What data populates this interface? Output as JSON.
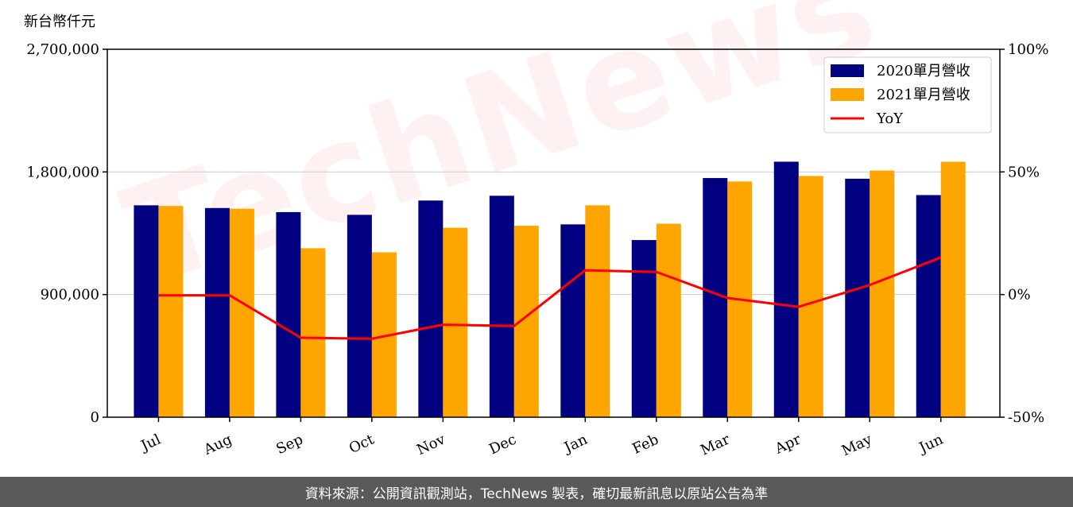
{
  "watermark": "TechNews",
  "footer": {
    "text": "資料來源：公開資訊觀測站，TechNews 製表，確切最新訊息以原站公告為準"
  },
  "chart_data": {
    "type": "bar",
    "unit_label": "新台幣仟元",
    "categories": [
      "Jul",
      "Aug",
      "Sep",
      "Oct",
      "Nov",
      "Dec",
      "Jan",
      "Feb",
      "Mar",
      "Apr",
      "May",
      "Jun"
    ],
    "series": [
      {
        "name": "2020單月營收",
        "color": "#000080",
        "values": [
          1555000,
          1535000,
          1505000,
          1485000,
          1590000,
          1625000,
          1415000,
          1300000,
          1755000,
          1875000,
          1750000,
          1630000
        ]
      },
      {
        "name": "2021單月營收",
        "color": "#FFA500",
        "values": [
          1550000,
          1530000,
          1240000,
          1210000,
          1390000,
          1405000,
          1555000,
          1420000,
          1730000,
          1770000,
          1810000,
          1875000
        ]
      }
    ],
    "line_series": {
      "name": "YoY",
      "color": "#FF0000",
      "axis": "right",
      "values": [
        -0.3,
        -0.3,
        -17.6,
        -18.0,
        -12.3,
        -12.8,
        9.9,
        9.2,
        -1.4,
        -5.0,
        3.9,
        15.1
      ]
    },
    "y_left": {
      "lim": [
        0,
        2700000
      ],
      "ticks": [
        0,
        900000,
        1800000,
        2700000
      ],
      "tick_labels": [
        "0",
        "900,000",
        "1,800,000",
        "2,700,000"
      ]
    },
    "y_right": {
      "lim": [
        -50,
        100
      ],
      "ticks": [
        -50,
        0,
        50,
        100
      ],
      "tick_labels": [
        "-50%",
        "0%",
        "50%",
        "100%"
      ]
    },
    "grid": "horizontal",
    "legend_position": "top-right"
  }
}
